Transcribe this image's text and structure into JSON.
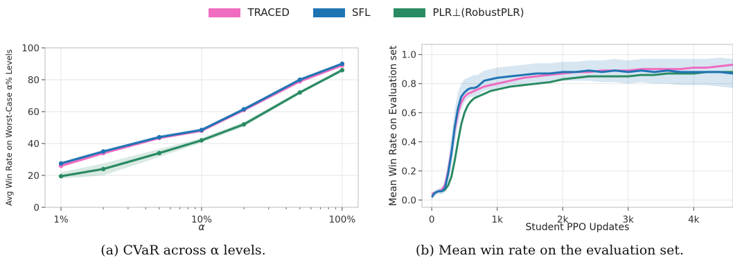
{
  "legend": [
    {
      "name": "TRACED",
      "color": "#f06cc0"
    },
    {
      "name": "SFL",
      "color": "#1f74b4"
    },
    {
      "name": "PLR⊥(RobustPLR)",
      "color": "#2a8a62"
    }
  ],
  "chart_data": [
    {
      "type": "line",
      "title": "",
      "xlabel": "α",
      "ylabel": "Avg Win Rate on Worst-Case α% Levels",
      "xscale": "log",
      "x": [
        1,
        2,
        5,
        10,
        20,
        50,
        100
      ],
      "x_tick_values": [
        1,
        10,
        100
      ],
      "x_tick_labels": [
        "1%",
        "10%",
        "100%"
      ],
      "ylim": [
        0,
        100
      ],
      "y_ticks": [
        0,
        20,
        40,
        60,
        80,
        100
      ],
      "grid": true,
      "series": [
        {
          "name": "TRACED",
          "color": "#f06cc0",
          "values": [
            26,
            34,
            43.5,
            48,
            61,
            79,
            89
          ],
          "band": [
            [
              25,
              27
            ],
            [
              33,
              35
            ],
            [
              42.5,
              44.5
            ],
            [
              47,
              49
            ],
            [
              60,
              62
            ],
            [
              78,
              80
            ],
            [
              88,
              90
            ]
          ]
        },
        {
          "name": "SFL",
          "color": "#1f74b4",
          "values": [
            27.5,
            35,
            44,
            48.5,
            61.5,
            80,
            90
          ],
          "band": [
            [
              26.5,
              28.5
            ],
            [
              34,
              36
            ],
            [
              43,
              45
            ],
            [
              47.5,
              49.5
            ],
            [
              60.5,
              62.5
            ],
            [
              79,
              81
            ],
            [
              89,
              91
            ]
          ]
        },
        {
          "name": "PLR⊥(RobustPLR)",
          "color": "#2a8a62",
          "values": [
            19.5,
            24,
            34,
            42,
            52,
            72,
            86
          ],
          "band": [
            [
              18,
              22
            ],
            [
              20,
              27.5
            ],
            [
              31.5,
              36.5
            ],
            [
              40.5,
              43.5
            ],
            [
              50.5,
              53.5
            ],
            [
              71,
              73
            ],
            [
              85,
              87
            ]
          ]
        }
      ],
      "caption": "(a) CVaR across α levels."
    },
    {
      "type": "line",
      "title": "",
      "xlabel": "Student PPO Updates",
      "ylabel": "Mean Win Rate on Evaluation set",
      "xlim": [
        -150,
        4600
      ],
      "x_ticks": [
        0,
        1000,
        2000,
        3000,
        4000
      ],
      "x_tick_labels": [
        "0",
        "1k",
        "2k",
        "3k",
        "4k"
      ],
      "ylim": [
        -0.05,
        1.07
      ],
      "y_ticks": [
        0.0,
        0.2,
        0.4,
        0.6,
        0.8,
        1.0
      ],
      "grid": true,
      "x": [
        0,
        50,
        100,
        150,
        200,
        250,
        300,
        350,
        400,
        450,
        500,
        550,
        600,
        650,
        700,
        800,
        900,
        1000,
        1200,
        1400,
        1600,
        1800,
        2000,
        2200,
        2400,
        2600,
        2800,
        3000,
        3200,
        3400,
        3600,
        3800,
        4000,
        4200,
        4400,
        4600
      ],
      "series": [
        {
          "name": "TRACED",
          "color": "#f06cc0",
          "values": [
            0.04,
            0.05,
            0.06,
            0.07,
            0.1,
            0.2,
            0.33,
            0.48,
            0.6,
            0.67,
            0.71,
            0.73,
            0.74,
            0.75,
            0.76,
            0.78,
            0.79,
            0.8,
            0.82,
            0.84,
            0.85,
            0.86,
            0.87,
            0.88,
            0.88,
            0.89,
            0.89,
            0.89,
            0.9,
            0.9,
            0.9,
            0.9,
            0.91,
            0.91,
            0.92,
            0.93
          ]
        },
        {
          "name": "SFL",
          "color": "#1f74b4",
          "values": [
            0.02,
            0.05,
            0.06,
            0.06,
            0.08,
            0.18,
            0.32,
            0.5,
            0.63,
            0.71,
            0.74,
            0.76,
            0.77,
            0.77,
            0.78,
            0.82,
            0.83,
            0.84,
            0.85,
            0.86,
            0.87,
            0.87,
            0.88,
            0.88,
            0.89,
            0.88,
            0.89,
            0.88,
            0.89,
            0.88,
            0.89,
            0.88,
            0.88,
            0.88,
            0.88,
            0.87
          ]
        },
        {
          "name": "PLR⊥(RobustPLR)",
          "color": "#2a8a62",
          "values": [
            0.04,
            0.05,
            0.06,
            0.06,
            0.07,
            0.1,
            0.16,
            0.27,
            0.4,
            0.52,
            0.6,
            0.65,
            0.68,
            0.7,
            0.71,
            0.73,
            0.75,
            0.76,
            0.78,
            0.79,
            0.8,
            0.81,
            0.83,
            0.84,
            0.85,
            0.85,
            0.85,
            0.85,
            0.86,
            0.86,
            0.87,
            0.87,
            0.87,
            0.88,
            0.88,
            0.88
          ]
        }
      ],
      "sfl_band": [
        [
          0.0,
          0.05
        ],
        [
          0.03,
          0.07
        ],
        [
          0.04,
          0.08
        ],
        [
          0.04,
          0.09
        ],
        [
          0.05,
          0.13
        ],
        [
          0.12,
          0.27
        ],
        [
          0.22,
          0.44
        ],
        [
          0.38,
          0.62
        ],
        [
          0.52,
          0.74
        ],
        [
          0.62,
          0.8
        ],
        [
          0.67,
          0.83
        ],
        [
          0.7,
          0.84
        ],
        [
          0.71,
          0.85
        ],
        [
          0.71,
          0.86
        ],
        [
          0.72,
          0.86
        ],
        [
          0.75,
          0.89
        ],
        [
          0.76,
          0.9
        ],
        [
          0.77,
          0.91
        ],
        [
          0.79,
          0.92
        ],
        [
          0.8,
          0.93
        ],
        [
          0.81,
          0.94
        ],
        [
          0.81,
          0.94
        ],
        [
          0.82,
          0.95
        ],
        [
          0.82,
          0.95
        ],
        [
          0.82,
          0.96
        ],
        [
          0.81,
          0.96
        ],
        [
          0.81,
          0.97
        ],
        [
          0.8,
          0.96
        ],
        [
          0.81,
          0.97
        ],
        [
          0.8,
          0.97
        ],
        [
          0.8,
          0.97
        ],
        [
          0.79,
          0.97
        ],
        [
          0.79,
          0.97
        ],
        [
          0.79,
          0.97
        ],
        [
          0.78,
          0.98
        ],
        [
          0.77,
          0.97
        ]
      ],
      "caption": "(b) Mean win rate on the evaluation set."
    }
  ]
}
